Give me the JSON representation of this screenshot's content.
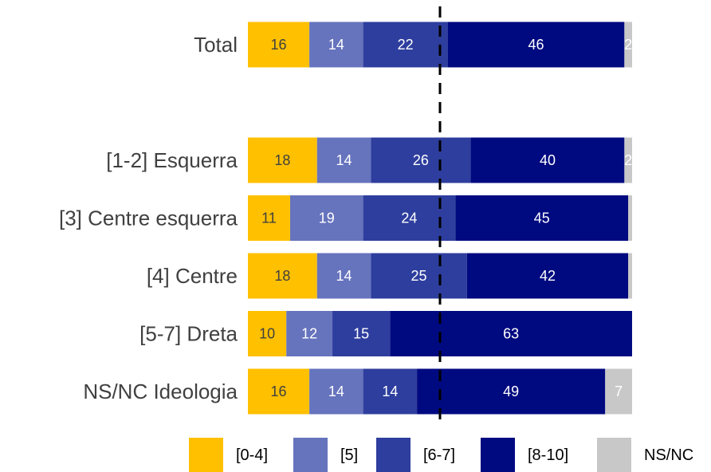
{
  "chart_data": {
    "type": "stacked_bar_horizontal",
    "categories": [
      "Total",
      null,
      "[1-2] Esquerra",
      "[3] Centre esquerra",
      "[4] Centre",
      "[5-7] Dreta",
      "NS/NC Ideologia"
    ],
    "series": [
      {
        "name": "[0-4]",
        "color": "#FFC000",
        "label_color": "#404040",
        "values": [
          16,
          null,
          18,
          11,
          18,
          10,
          16
        ]
      },
      {
        "name": "[5]",
        "color": "#6673BD",
        "label_color": "#ffffff",
        "values": [
          14,
          null,
          14,
          19,
          14,
          12,
          14
        ]
      },
      {
        "name": "[6-7]",
        "color": "#2E3E9E",
        "label_color": "#ffffff",
        "values": [
          22,
          null,
          26,
          24,
          25,
          15,
          14
        ]
      },
      {
        "name": "[8-10]",
        "color": "#000A80",
        "label_color": "#ffffff",
        "values": [
          46,
          null,
          40,
          45,
          42,
          63,
          49
        ]
      },
      {
        "name": "NS/NC",
        "color": "#C8C8C8",
        "label_color": "#ffffff",
        "values": [
          2,
          null,
          2,
          1,
          1,
          0,
          7
        ]
      }
    ],
    "xlim": [
      0,
      100
    ],
    "reference_line": 50,
    "legend": "bottom"
  }
}
